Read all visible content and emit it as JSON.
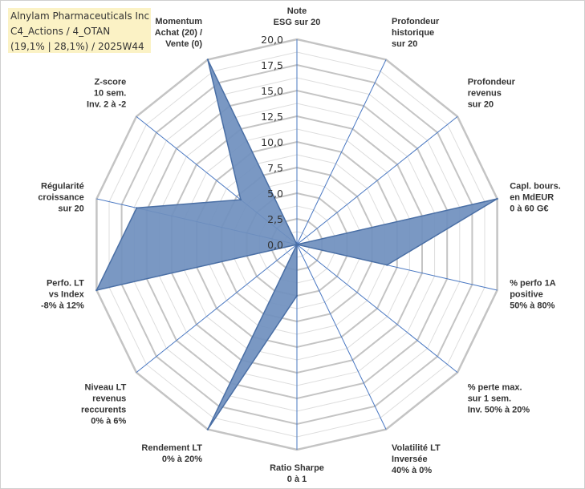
{
  "header": {
    "line1": "Alnylam Pharmaceuticals Inc",
    "line2": "C4_Actions / 4_OTAN",
    "line3": "(19,1% | 28,1%) / 2025W44"
  },
  "chart_data": {
    "type": "radar",
    "title": "Alnylam Pharmaceuticals Inc",
    "rlim": [
      0,
      20
    ],
    "ticks": [
      "0,0",
      "2,5",
      "5,0",
      "7,5",
      "10,0",
      "12,5",
      "15,0",
      "17,5",
      "20,0"
    ],
    "grid": true,
    "fill_color": "#6f8fbe",
    "line_color": "#4a6fa5",
    "axes": [
      {
        "label": [
          "Note",
          "ESG sur 20"
        ],
        "value": 0
      },
      {
        "label": [
          "Profondeur",
          "historique",
          "sur 20"
        ],
        "value": 0
      },
      {
        "label": [
          "Profondeur",
          "revenus",
          "sur 20"
        ],
        "value": 0
      },
      {
        "label": [
          "Capl. bours.",
          "en MdEUR",
          "0 à 60 G€"
        ],
        "value": 20
      },
      {
        "label": [
          "% perfo 1A",
          "positive",
          "50% à 80%"
        ],
        "value": 9
      },
      {
        "label": [
          "% perte max.",
          "sur 1 sem.",
          "Inv. 50% à 20%"
        ],
        "value": 0
      },
      {
        "label": [
          "Volatilité LT",
          "Inversée",
          "40% à 0%"
        ],
        "value": 0
      },
      {
        "label": [
          "Ratio Sharpe",
          "0 à 1"
        ],
        "value": 5
      },
      {
        "label": [
          "Rendement LT",
          "0% à 20%"
        ],
        "value": 20
      },
      {
        "label": [
          "Niveau LT",
          "revenus",
          "reccurents",
          "0% à 6%"
        ],
        "value": 0
      },
      {
        "label": [
          "Perfo. LT",
          "vs Index",
          "-8% à 12%"
        ],
        "value": 20
      },
      {
        "label": [
          "Régularité",
          "croissance",
          "sur 20"
        ],
        "value": 16
      },
      {
        "label": [
          "Z-score",
          "10 sem.",
          "Inv. 2 à -2"
        ],
        "value": 7
      },
      {
        "label": [
          "Momentum",
          "Achat (20) /",
          "Vente (0)"
        ],
        "value": 20
      }
    ]
  }
}
